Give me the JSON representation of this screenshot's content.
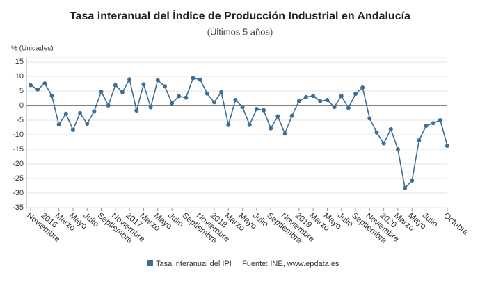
{
  "chart_data": {
    "type": "line",
    "title": "Tasa interanual del Índice de Producción Industrial en Andalucía",
    "subtitle": "(Últimos 5 años)",
    "y_axis_label": "% (Unidades)",
    "source": "Fuente: INE, www.epdata.es",
    "categories": [
      "Noviembre",
      null,
      "2016",
      null,
      "Marzo",
      null,
      "Mayo",
      null,
      "Julio",
      null,
      "Septiembre",
      null,
      "Noviembre",
      null,
      "2017",
      null,
      "Marzo",
      null,
      "Mayo",
      null,
      "Julio",
      null,
      "Septiembre",
      null,
      "Noviembre",
      null,
      "2018",
      null,
      "Marzo",
      null,
      "Mayo",
      null,
      "Julio",
      null,
      "Septiembre",
      null,
      "Noviembre",
      null,
      "2019",
      null,
      "Marzo",
      null,
      "Mayo",
      null,
      "Julio",
      null,
      "Septiembre",
      null,
      "Noviembre",
      null,
      "2020",
      null,
      "Marzo",
      null,
      "Mayo",
      null,
      "Julio",
      null,
      null,
      "Octubre"
    ],
    "series": [
      {
        "name": "Tasa interanual del IPI",
        "color": "#3d6f96",
        "values": [
          7,
          5.5,
          7.6,
          3.4,
          -6.5,
          -2.8,
          -8.3,
          -2.6,
          -6.2,
          -2,
          4.8,
          0,
          7,
          4.6,
          9,
          -1.7,
          7.3,
          -0.6,
          8.7,
          6.6,
          0.8,
          3.2,
          2.7,
          9.4,
          8.9,
          4.1,
          1.1,
          4.6,
          -6.6,
          1.9,
          -0.5,
          -6.6,
          -1.2,
          -1.6,
          -7.8,
          -3.7,
          -9.6,
          -3.5,
          1.5,
          2.9,
          3.3,
          1.5,
          1.9,
          -0.5,
          3.3,
          -0.8,
          4,
          6.2,
          -4.4,
          -9.2,
          -13,
          -8.1,
          -15,
          -28.3,
          -25.7,
          -11.9,
          -6.9,
          -6,
          -5,
          -13.8
        ]
      }
    ],
    "ylim": [
      -35,
      15
    ],
    "yticks": [
      15,
      10,
      5,
      0,
      -5,
      -10,
      -15,
      -20,
      -25,
      -30,
      -35
    ],
    "grid": true
  }
}
